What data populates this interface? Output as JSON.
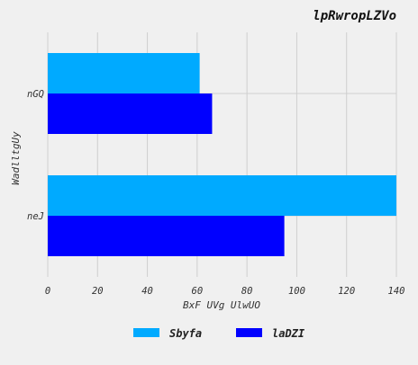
{
  "chart_data": {
    "type": "bar",
    "orientation": "horizontal",
    "title": "lpRwropLZVo",
    "xlabel": "BxF UVg UlwUO",
    "ylabel": "WadlltgUy",
    "categories": [
      "nGQ",
      "neJ"
    ],
    "series": [
      {
        "name": "Sbyfa",
        "color": "#00aaff",
        "values": [
          61,
          140
        ]
      },
      {
        "name": "laDZI",
        "color": "#0000ff",
        "values": [
          66,
          95
        ]
      }
    ],
    "xlim": [
      0,
      140
    ],
    "xticks": [
      0,
      20,
      40,
      60,
      80,
      100,
      120,
      140
    ],
    "grid": true,
    "legend_position": "bottom-center"
  }
}
